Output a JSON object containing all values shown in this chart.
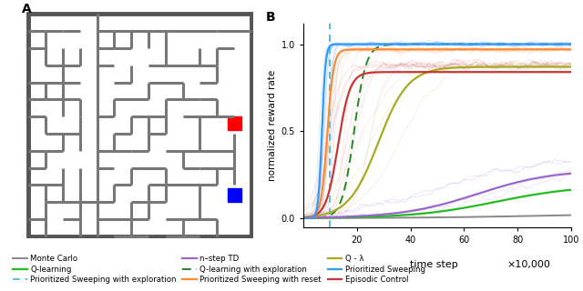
{
  "title_A": "A",
  "title_B": "B",
  "xlabel": "time step",
  "xlabel_scale": "×10,000",
  "ylabel": "normalized reward rate",
  "xlim": [
    0,
    100
  ],
  "ylim": [
    -0.05,
    1.12
  ],
  "xticks": [
    20,
    40,
    60,
    80,
    100
  ],
  "yticks": [
    0.0,
    0.5,
    1.0
  ],
  "colors": {
    "monte_carlo": "#888888",
    "q_learning": "#22bb22",
    "ps_exploration": "#55bbee",
    "n_step_td": "#9966cc",
    "q_lambda": "#aaaa22",
    "q_learning_exp": "#228822",
    "prioritized_sweeping": "#3399ff",
    "ps_reset": "#ff8833",
    "episodic_control": "#cc3333"
  },
  "maze_wall_color": "#777777",
  "maze_border_color": "#555555"
}
